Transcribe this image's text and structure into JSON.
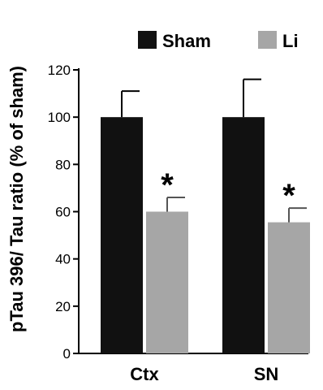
{
  "chart_data": {
    "type": "bar",
    "categories": [
      "Ctx",
      "SN"
    ],
    "series": [
      {
        "name": "Sham",
        "values": [
          100,
          100
        ],
        "error": [
          11,
          16
        ],
        "color": "#111111"
      },
      {
        "name": "Li",
        "values": [
          60,
          55.5
        ],
        "error": [
          6,
          6
        ],
        "color": "#a6a6a6"
      }
    ],
    "ylabel": "pTau 396/ Tau ratio (% of sham)",
    "ylim": [
      0,
      120
    ],
    "yticks": [
      0,
      20,
      40,
      60,
      80,
      100,
      120
    ],
    "grid": false,
    "legend": "top-right",
    "annotations": [
      {
        "category": "Ctx",
        "series": "Li",
        "text": "*"
      },
      {
        "category": "SN",
        "series": "Li",
        "text": "*"
      }
    ]
  }
}
